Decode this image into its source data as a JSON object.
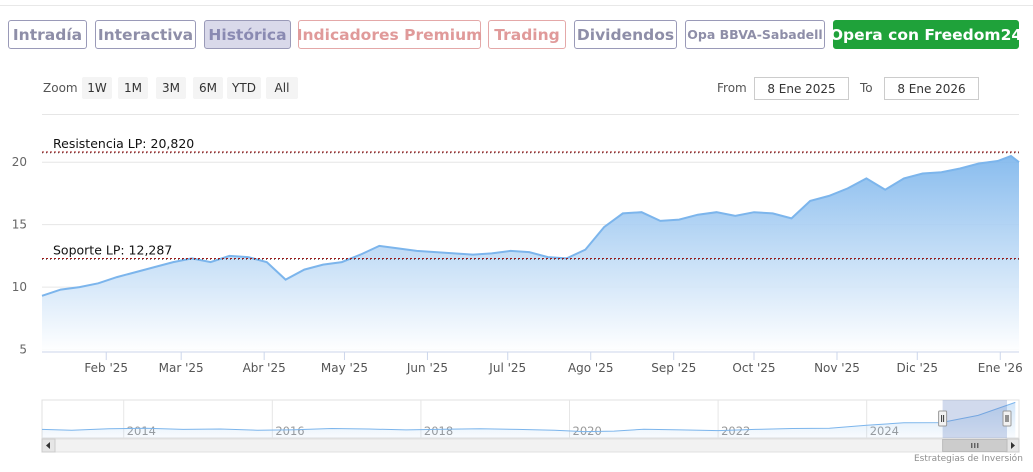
{
  "tabs": [
    {
      "label": "Intradía",
      "state": "normal"
    },
    {
      "label": "Interactiva",
      "state": "normal"
    },
    {
      "label": "Histórica",
      "state": "active"
    },
    {
      "label": "Indicadores Premium",
      "state": "premium"
    },
    {
      "label": "Trading",
      "state": "premium"
    },
    {
      "label": "Dividendos",
      "state": "normal"
    },
    {
      "label": "Opa BBVA-Sabadell",
      "state": "small"
    },
    {
      "label": "Opera con Freedom24",
      "state": "cta"
    }
  ],
  "zoom": {
    "label": "Zoom",
    "buttons": [
      "1W",
      "1M",
      "3M",
      "6M",
      "YTD",
      "All"
    ]
  },
  "range": {
    "from_label": "From",
    "from_value": "8 Ene 2025",
    "to_label": "To",
    "to_value": "8 Ene 2026"
  },
  "colors": {
    "series_line": "#7cb5ec",
    "area_top": "#7cb5ec",
    "area_bottom": "#ffffff",
    "level_line": "#a01818",
    "cta_green": "#1fa23a",
    "tab_border": "#9a9ab8",
    "premium": "#e09a9a"
  },
  "chart_data": {
    "type": "area",
    "x_start": "2025-01-08",
    "x_end": "2026-01-08",
    "x": [
      "2025-01-08",
      "2025-01-15",
      "2025-01-22",
      "2025-01-29",
      "2025-02-05",
      "2025-02-12",
      "2025-02-19",
      "2025-02-26",
      "2025-03-05",
      "2025-03-12",
      "2025-03-19",
      "2025-03-26",
      "2025-04-02",
      "2025-04-09",
      "2025-04-16",
      "2025-04-23",
      "2025-04-30",
      "2025-05-07",
      "2025-05-14",
      "2025-05-21",
      "2025-05-28",
      "2025-06-04",
      "2025-06-11",
      "2025-06-18",
      "2025-06-25",
      "2025-07-02",
      "2025-07-09",
      "2025-07-16",
      "2025-07-23",
      "2025-07-30",
      "2025-08-06",
      "2025-08-13",
      "2025-08-20",
      "2025-08-27",
      "2025-09-03",
      "2025-09-10",
      "2025-09-17",
      "2025-09-24",
      "2025-10-01",
      "2025-10-08",
      "2025-10-15",
      "2025-10-22",
      "2025-10-29",
      "2025-11-05",
      "2025-11-12",
      "2025-11-19",
      "2025-11-26",
      "2025-12-03",
      "2025-12-10",
      "2025-12-17",
      "2025-12-24",
      "2025-12-31",
      "2026-01-05",
      "2026-01-08"
    ],
    "y": [
      9.3,
      9.8,
      10.0,
      10.3,
      10.8,
      11.2,
      11.6,
      12.0,
      12.3,
      12.0,
      12.5,
      12.4,
      12.0,
      10.6,
      11.4,
      11.8,
      12.0,
      12.6,
      13.3,
      13.1,
      12.9,
      12.8,
      12.7,
      12.6,
      12.7,
      12.9,
      12.8,
      12.4,
      12.3,
      13.0,
      14.8,
      15.9,
      16.0,
      15.3,
      15.4,
      15.8,
      16.0,
      15.7,
      16.0,
      15.9,
      15.5,
      16.9,
      17.3,
      17.9,
      18.7,
      17.8,
      18.7,
      19.1,
      19.2,
      19.5,
      19.9,
      20.1,
      20.5,
      20.0
    ],
    "ylim": [
      4.8,
      22.5
    ],
    "y_ticks": [
      "5",
      "10",
      "15",
      "20"
    ],
    "x_tick_labels": [
      "Feb '25",
      "Mar '25",
      "Abr '25",
      "May '25",
      "Jun '25",
      "Jul '25",
      "Ago '25",
      "Sep '25",
      "Oct '25",
      "Nov '25",
      "Dic '25",
      "Ene '26"
    ],
    "grid": true,
    "annotations": [
      {
        "text": "Resistencia LP: 20,820",
        "value": 20.82
      },
      {
        "text": "Soporte LP: 12,287",
        "value": 12.287
      }
    ],
    "navigator": {
      "labels": [
        "2014",
        "2016",
        "2018",
        "2020",
        "2022",
        "2024"
      ],
      "years": [
        2014,
        2016,
        2018,
        2020,
        2022,
        2024
      ],
      "year_start": 2012.9,
      "year_end": 2026.05,
      "x": [
        2012.9,
        2013.3,
        2013.8,
        2014.3,
        2014.8,
        2015.3,
        2015.8,
        2016.3,
        2016.8,
        2017.3,
        2017.8,
        2018.3,
        2018.8,
        2019.3,
        2019.8,
        2020.2,
        2020.6,
        2021.0,
        2021.5,
        2022.0,
        2022.5,
        2023.0,
        2023.5,
        2024.0,
        2024.5,
        2025.0,
        2025.5,
        2026.0
      ],
      "y": [
        8.6,
        8.3,
        8.9,
        9.1,
        8.6,
        8.8,
        8.3,
        8.5,
        9.0,
        8.8,
        8.4,
        8.7,
        8.9,
        8.6,
        8.3,
        7.7,
        7.9,
        8.7,
        8.4,
        8.1,
        8.6,
        9.0,
        9.1,
        10.4,
        11.4,
        11.5,
        14.5,
        20.0
      ],
      "ylim": [
        5.0,
        21.0
      ],
      "selected_range": [
        "2025-01-08",
        "2026-01-08"
      ]
    },
    "credit": "Estrategias de Inversión"
  }
}
